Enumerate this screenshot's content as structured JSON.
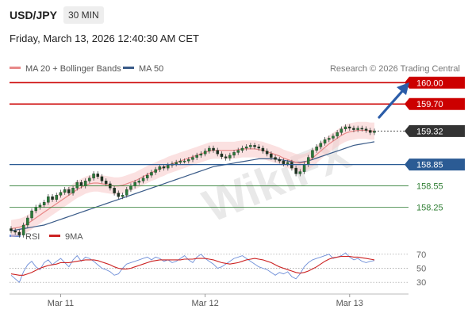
{
  "header": {
    "symbol": "USD/JPY",
    "timeframe": "30 MIN",
    "timestamp": "Friday, March 13, 2026 12:40:30 AM CET"
  },
  "legend": {
    "ma20": "MA 20 + Bollinger Bands",
    "ma50": "MA 50",
    "credit": "Research © 2026 Trading Central",
    "rsi": "RSI",
    "ma9": "9MA"
  },
  "watermark": "WikiFX",
  "colors": {
    "resistance": "#cc0000",
    "support": "#2b5b94",
    "support_green": "#2e7d32",
    "current": "#333333",
    "candle": "#2a7a3a",
    "ma20": "#e88888",
    "ma50": "#3a5b88",
    "rsi": "#6f8fd8",
    "ma9": "#cc2222",
    "arrow": "#2b5ca8"
  },
  "chart_data": [
    {
      "type": "candlestick",
      "name": "USD/JPY",
      "timeframe": "30 MIN",
      "ylim": [
        158.0,
        160.07
      ],
      "x_ticks": [
        {
          "label": "Mar 11",
          "i": 12
        },
        {
          "label": "Mar 12",
          "i": 47
        },
        {
          "label": "Mar 13",
          "i": 82
        }
      ],
      "levels": [
        {
          "label": "160.00",
          "value": 160.0,
          "kind": "resistance",
          "style": "box"
        },
        {
          "label": "159.70",
          "value": 159.7,
          "kind": "resistance",
          "style": "box"
        },
        {
          "label": "159.32",
          "value": 159.32,
          "kind": "current",
          "style": "box"
        },
        {
          "label": "158.85",
          "value": 158.85,
          "kind": "support",
          "style": "box"
        },
        {
          "label": "158.55",
          "value": 158.55,
          "kind": "support_green",
          "style": "text"
        },
        {
          "label": "158.25",
          "value": 158.25,
          "kind": "support_green",
          "style": "text"
        }
      ],
      "close": [
        157.92,
        157.9,
        157.86,
        158.0,
        158.1,
        158.2,
        158.25,
        158.28,
        158.32,
        158.4,
        158.36,
        158.42,
        158.46,
        158.5,
        158.45,
        158.52,
        158.6,
        158.55,
        158.62,
        158.66,
        158.72,
        158.68,
        158.62,
        158.58,
        158.52,
        158.45,
        158.4,
        158.42,
        158.5,
        158.55,
        158.6,
        158.62,
        158.66,
        158.7,
        158.74,
        158.78,
        158.82,
        158.8,
        158.84,
        158.86,
        158.88,
        158.9,
        158.9,
        158.92,
        158.95,
        158.98,
        159.0,
        159.04,
        159.08,
        159.05,
        159.0,
        158.96,
        158.94,
        158.98,
        159.02,
        159.05,
        159.08,
        159.1,
        159.12,
        159.1,
        159.08,
        159.04,
        159.0,
        158.95,
        158.92,
        158.9,
        158.86,
        158.88,
        158.8,
        158.72,
        158.75,
        158.85,
        158.95,
        159.05,
        159.1,
        159.15,
        159.2,
        159.22,
        159.25,
        159.3,
        159.35,
        159.38,
        159.36,
        159.34,
        159.36,
        159.35,
        159.33,
        159.3,
        159.32
      ],
      "ma20": [
        157.95,
        157.96,
        157.97,
        157.99,
        158.02,
        158.06,
        158.1,
        158.14,
        158.18,
        158.22,
        158.26,
        158.3,
        158.34,
        158.38,
        158.42,
        158.46,
        158.5,
        158.53,
        158.56,
        158.58,
        158.59,
        158.59,
        158.58,
        158.57,
        158.56,
        158.55,
        158.55,
        158.56,
        158.58,
        158.6,
        158.62,
        158.65,
        158.68,
        158.71,
        158.74,
        158.76,
        158.79,
        158.81,
        158.84,
        158.86,
        158.88,
        158.9,
        158.92,
        158.94,
        158.96,
        158.98,
        159.0,
        159.02,
        159.04,
        159.05,
        159.05,
        159.05,
        159.05,
        159.05,
        159.05,
        159.06,
        159.07,
        159.07,
        159.07,
        159.07,
        159.06,
        159.05,
        159.03,
        159.01,
        158.99,
        158.97,
        158.94,
        158.92,
        158.9,
        158.88,
        158.87,
        158.88,
        158.9,
        158.94,
        158.99,
        159.04,
        159.09,
        159.14,
        159.18,
        159.22,
        159.26,
        159.29,
        159.31,
        159.32,
        159.33,
        159.33,
        159.33,
        159.32,
        159.32
      ],
      "ma50": [
        157.92,
        157.93,
        157.94,
        157.95,
        157.96,
        157.97,
        157.98,
        157.99,
        158.0,
        158.02,
        158.04,
        158.06,
        158.08,
        158.1,
        158.12,
        158.14,
        158.16,
        158.18,
        158.2,
        158.22,
        158.24,
        158.26,
        158.28,
        158.3,
        158.32,
        158.34,
        158.36,
        158.38,
        158.4,
        158.42,
        158.44,
        158.46,
        158.48,
        158.5,
        158.52,
        158.54,
        158.56,
        158.58,
        158.6,
        158.62,
        158.64,
        158.66,
        158.68,
        158.7,
        158.72,
        158.74,
        158.76,
        158.78,
        158.8,
        158.82,
        158.83,
        158.84,
        158.85,
        158.86,
        158.87,
        158.88,
        158.89,
        158.9,
        158.91,
        158.92,
        158.93,
        158.93,
        158.93,
        158.93,
        158.93,
        158.92,
        158.91,
        158.9,
        158.89,
        158.88,
        158.88,
        158.89,
        158.9,
        158.92,
        158.94,
        158.96,
        158.98,
        159.0,
        159.02,
        159.04,
        159.06,
        159.08,
        159.1,
        159.12,
        159.13,
        159.14,
        159.15,
        159.16,
        159.17
      ]
    },
    {
      "type": "line",
      "name": "RSI",
      "ylim": [
        20,
        80
      ],
      "y_ticks": [
        70,
        50,
        30
      ],
      "series": [
        {
          "name": "RSI",
          "values": [
            40,
            35,
            30,
            45,
            55,
            60,
            52,
            48,
            58,
            62,
            55,
            60,
            64,
            58,
            52,
            62,
            68,
            60,
            66,
            64,
            60,
            55,
            50,
            48,
            45,
            40,
            42,
            50,
            56,
            58,
            60,
            62,
            64,
            66,
            62,
            66,
            64,
            60,
            62,
            58,
            60,
            64,
            68,
            62,
            58,
            66,
            70,
            64,
            60,
            56,
            50,
            52,
            56,
            60,
            64,
            66,
            68,
            64,
            60,
            56,
            52,
            50,
            48,
            44,
            40,
            44,
            42,
            45,
            38,
            35,
            42,
            52,
            58,
            62,
            64,
            66,
            68,
            70,
            64,
            66,
            68,
            72,
            66,
            62,
            64,
            60,
            58,
            60,
            61
          ]
        },
        {
          "name": "9MA",
          "values": [
            42,
            41,
            40,
            40,
            42,
            44,
            47,
            50,
            52,
            54,
            55,
            56,
            58,
            58,
            58,
            59,
            60,
            61,
            62,
            62,
            62,
            61,
            59,
            57,
            55,
            52,
            50,
            49,
            49,
            50,
            52,
            54,
            56,
            58,
            60,
            61,
            62,
            62,
            62,
            62,
            62,
            62,
            63,
            63,
            63,
            64,
            64,
            64,
            63,
            62,
            60,
            58,
            57,
            56,
            57,
            58,
            60,
            62,
            63,
            64,
            63,
            62,
            60,
            58,
            55,
            52,
            50,
            48,
            46,
            44,
            43,
            44,
            46,
            49,
            52,
            56,
            60,
            63,
            65,
            66,
            67,
            67,
            67,
            66,
            66,
            65,
            64,
            63,
            62
          ]
        }
      ]
    }
  ]
}
